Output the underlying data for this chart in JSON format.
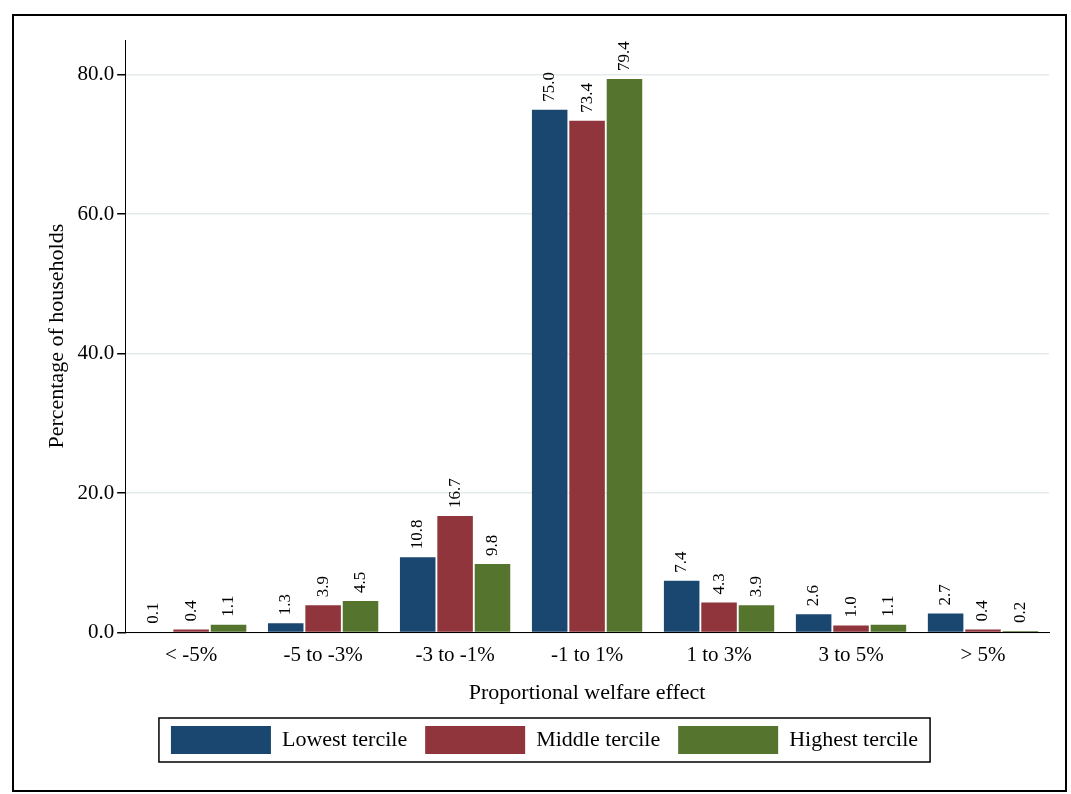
{
  "chart_data": {
    "type": "bar",
    "xlabel": "Proportional welfare effect",
    "ylabel": "Percentage of households",
    "categories": [
      "< -5%",
      "-5 to -3%",
      "-3 to -1%",
      "-1 to 1%",
      "1 to 3%",
      "3 to 5%",
      "> 5%"
    ],
    "series": [
      {
        "name": "Lowest tercile",
        "color": "#1a476f",
        "values": [
          0.1,
          1.3,
          10.8,
          75,
          7.4,
          2.6,
          2.7
        ],
        "value_labels": [
          "0.1",
          "1.3",
          "10.8",
          "75.0",
          "7.4",
          "2.6",
          "2.7"
        ]
      },
      {
        "name": "Middle tercile",
        "color": "#90353b",
        "values": [
          0.4,
          3.9,
          16.7,
          73.4,
          4.3,
          1,
          0.4
        ],
        "value_labels": [
          "0.4",
          "3.9",
          "16.7",
          "73.4",
          "4.3",
          "1.0",
          "0.4"
        ]
      },
      {
        "name": "Highest tercile",
        "color": "#55752f",
        "values": [
          1.1,
          4.5,
          9.8,
          79.4,
          3.9,
          1.1,
          0.2
        ],
        "value_labels": [
          "1.1",
          "4.5",
          "9.8",
          "79.4",
          "3.9",
          "1.1",
          "0.2"
        ]
      }
    ],
    "ylim": [
      0,
      85
    ],
    "yticks": [
      {
        "value": 0,
        "label": "0.0"
      },
      {
        "value": 20,
        "label": "20.0"
      },
      {
        "value": 40,
        "label": "40.0"
      },
      {
        "value": 60,
        "label": "60.0"
      },
      {
        "value": 80,
        "label": "80.0"
      }
    ],
    "grid": "y",
    "legend": "bottom"
  }
}
